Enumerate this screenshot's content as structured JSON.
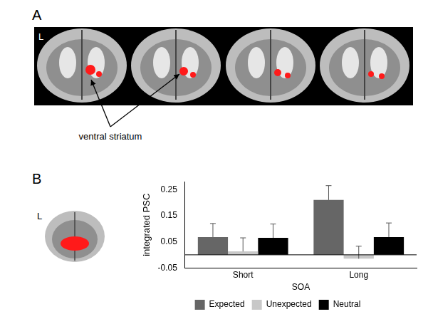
{
  "panels": {
    "panel_a_label": "A",
    "panel_b_label": "B",
    "orientation_label_a": "L",
    "orientation_label_b": "L",
    "region_label": "ventral striatum"
  },
  "chart_data": {
    "type": "bar",
    "categories": [
      "Short",
      "Long"
    ],
    "x_label": "SOA",
    "y_label": "integrated PSC",
    "series": [
      {
        "name": "Expected",
        "color": "#666666",
        "values": [
          0.068,
          0.21
        ],
        "errors": [
          0.052,
          0.055
        ]
      },
      {
        "name": "Unexpected",
        "color": "#c8c8c8",
        "values": [
          0.013,
          -0.015
        ],
        "errors": [
          0.052,
          0.048
        ]
      },
      {
        "name": "Neutral",
        "color": "#000000",
        "values": [
          0.065,
          0.068
        ],
        "errors": [
          0.053,
          0.054
        ]
      }
    ],
    "ylim": [
      -0.05,
      0.28
    ],
    "yticks": [
      -0.05,
      0.05,
      0.15,
      0.25
    ],
    "grid": false,
    "legend": "bottom"
  }
}
